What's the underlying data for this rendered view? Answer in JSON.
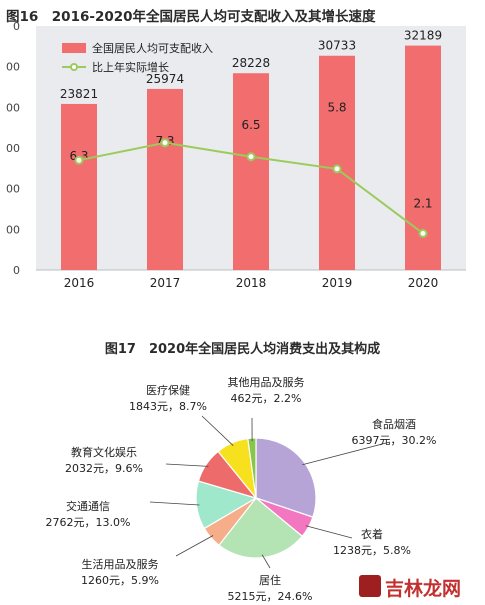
{
  "titles": {
    "fig16": "图16　2016-2020年全国居民人均可支配收入及其增长速度",
    "fig17": "图17　2020年全国居民人均消费支出及其构成"
  },
  "watermark": "吉林龙网",
  "chart_data": [
    {
      "type": "bar",
      "title": "图16　2016-2020年全国居民人均可支配收入及其增长速度",
      "categories": [
        "2016",
        "2017",
        "2018",
        "2019",
        "2020"
      ],
      "series": [
        {
          "name": "全国居民人均可支配收入",
          "type": "bar",
          "color": "#f26e6e",
          "values": [
            23821,
            25974,
            28228,
            30733,
            32189
          ]
        },
        {
          "name": "比上年实际增长",
          "type": "line",
          "color": "#9bcb5b",
          "values": [
            6.3,
            7.3,
            6.5,
            5.8,
            2.1
          ]
        }
      ],
      "left_axis_ticks": [
        "0",
        "00",
        "00",
        "00",
        "00",
        "00",
        "0"
      ],
      "ylim_left": [
        0,
        35000
      ],
      "ylim_right": [
        0,
        14
      ],
      "legend_position": "top-left",
      "grid": false
    },
    {
      "type": "pie",
      "title": "图17　2020年全国居民人均消费支出及其构成",
      "slices": [
        {
          "name": "食品烟酒",
          "value": 6397,
          "percent": "30.2%",
          "label": "6397元，30.2%",
          "color": "#b7a4d6"
        },
        {
          "name": "衣着",
          "value": 1238,
          "percent": "5.8%",
          "label": "1238元，5.8%",
          "color": "#f277c0"
        },
        {
          "name": "居住",
          "value": 5215,
          "percent": "24.6%",
          "label": "5215元，24.6%",
          "color": "#b4e3b4"
        },
        {
          "name": "生活用品及服务",
          "value": 1260,
          "percent": "5.9%",
          "label": "1260元，5.9%",
          "color": "#f6ad8a"
        },
        {
          "name": "交通通信",
          "value": 2762,
          "percent": "13.0%",
          "label": "2762元，13.0%",
          "color": "#9fe8cb"
        },
        {
          "name": "教育文化娱乐",
          "value": 2032,
          "percent": "9.6%",
          "label": "2032元，9.6%",
          "color": "#ee6b6b"
        },
        {
          "name": "医疗保健",
          "value": 1843,
          "percent": "8.7%",
          "label": "1843元，8.7%",
          "color": "#f7e11e"
        },
        {
          "name": "其他用品及服务",
          "value": 462,
          "percent": "2.2%",
          "label": "462元，2.2%",
          "color": "#86c64c"
        }
      ]
    }
  ]
}
